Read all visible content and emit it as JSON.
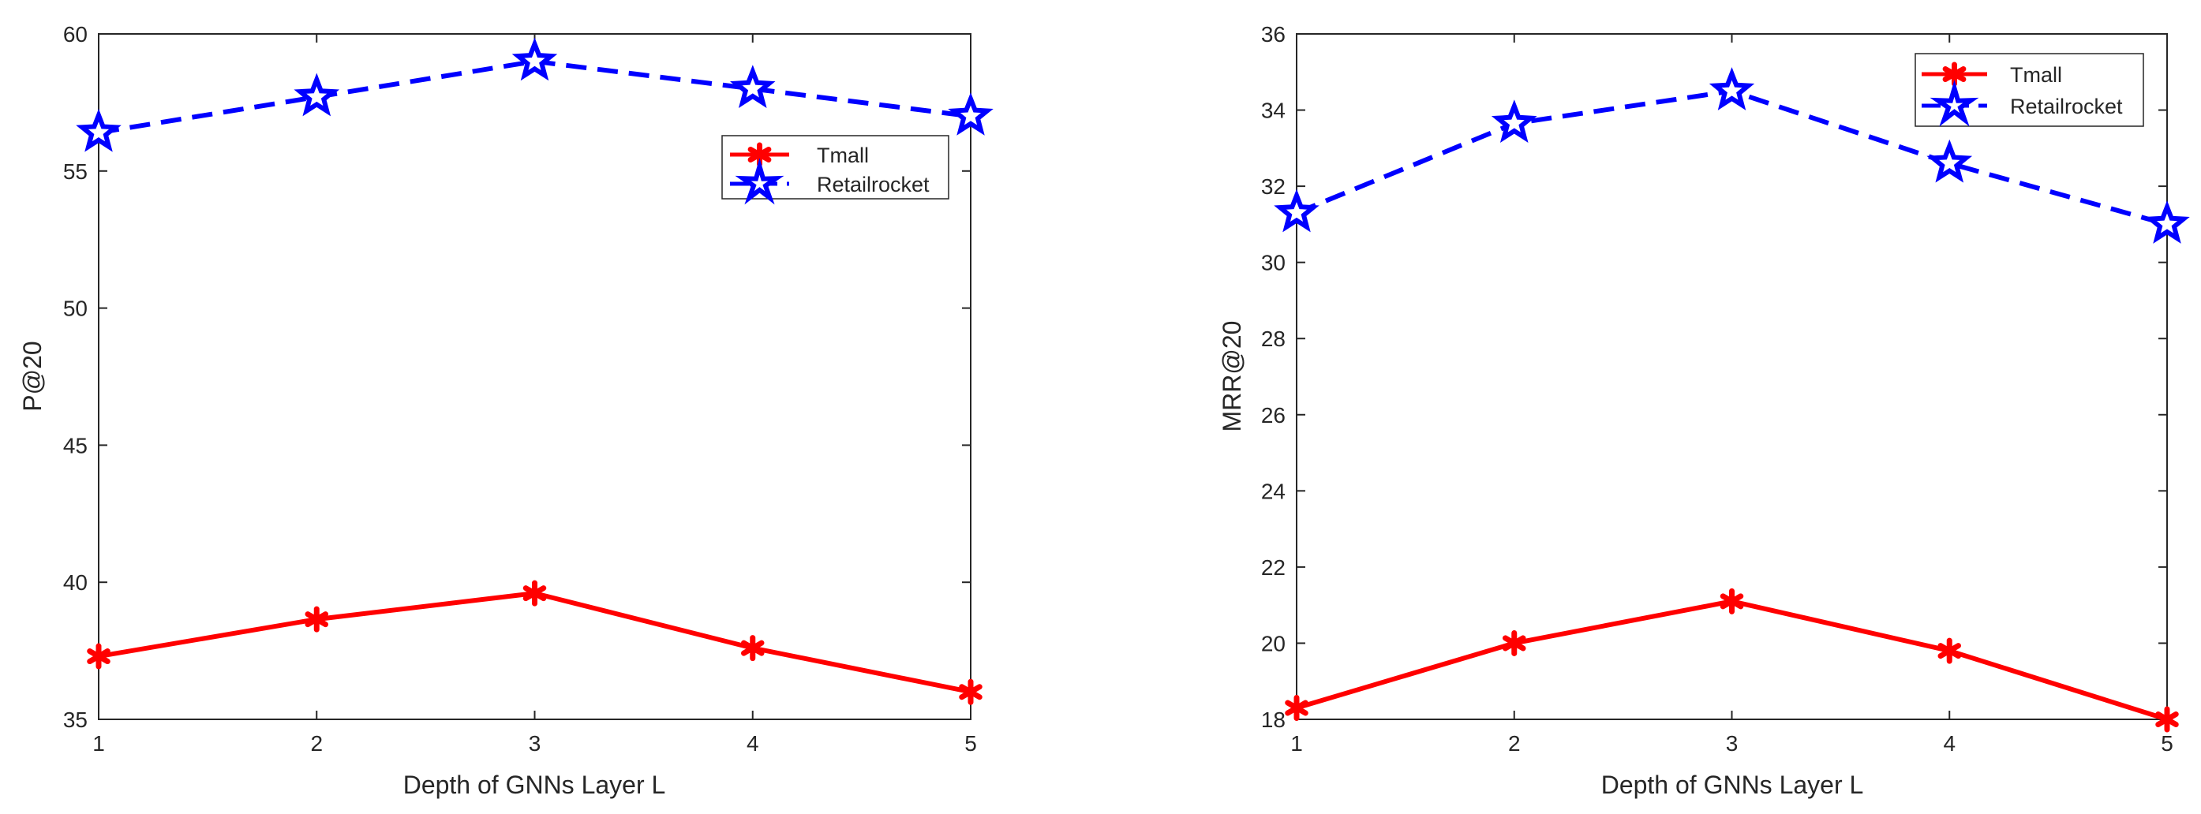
{
  "chart_data": [
    {
      "type": "line",
      "xlabel": "Depth of GNNs Layer L",
      "ylabel": "P@20",
      "x": [
        1,
        2,
        3,
        4,
        5
      ],
      "xlim": [
        1,
        5
      ],
      "ylim": [
        35,
        60
      ],
      "xticks": [
        1,
        2,
        3,
        4,
        5
      ],
      "yticks": [
        35,
        40,
        45,
        50,
        55,
        60
      ],
      "grid": false,
      "legend_position": "upper-right",
      "series": [
        {
          "name": "Tmall",
          "color": "#ff0000",
          "line_style": "solid",
          "marker": "asterisk",
          "values": [
            37.3,
            38.65,
            39.6,
            37.6,
            36.0
          ]
        },
        {
          "name": "Retailrocket",
          "color": "#0000ff",
          "line_style": "dashed",
          "marker": "star",
          "values": [
            56.4,
            57.7,
            59.0,
            58.0,
            57.0
          ]
        }
      ]
    },
    {
      "type": "line",
      "xlabel": "Depth of GNNs Layer L",
      "ylabel": "MRR@20",
      "x": [
        1,
        2,
        3,
        4,
        5
      ],
      "xlim": [
        1,
        5
      ],
      "ylim": [
        18,
        36
      ],
      "xticks": [
        1,
        2,
        3,
        4,
        5
      ],
      "yticks": [
        18,
        20,
        22,
        24,
        26,
        28,
        30,
        32,
        34,
        36
      ],
      "grid": false,
      "legend_position": "upper-right",
      "series": [
        {
          "name": "Tmall",
          "color": "#ff0000",
          "line_style": "solid",
          "marker": "asterisk",
          "values": [
            18.3,
            20.0,
            21.1,
            19.8,
            18.0
          ]
        },
        {
          "name": "Retailrocket",
          "color": "#0000ff",
          "line_style": "dashed",
          "marker": "star",
          "values": [
            31.3,
            33.65,
            34.5,
            32.6,
            31.0
          ]
        }
      ]
    }
  ]
}
